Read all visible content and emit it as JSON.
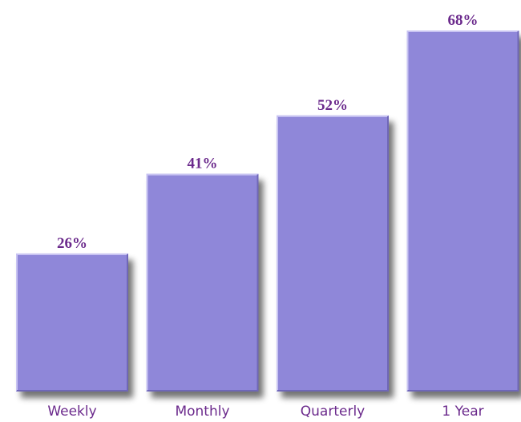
{
  "chart_data": {
    "type": "bar",
    "categories": [
      "Weekly",
      "Monthly",
      "Quarterly",
      "1 Year"
    ],
    "values": [
      26,
      41,
      52,
      68
    ],
    "value_labels": [
      "26%",
      "41%",
      "52%",
      "68%"
    ],
    "color": "#8f87d9"
  }
}
